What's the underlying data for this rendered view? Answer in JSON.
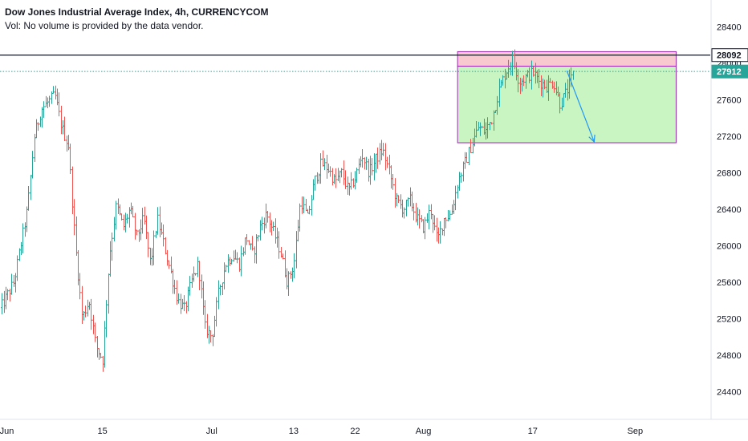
{
  "header": {
    "title": "Dow Jones Industrial Average Index, 4h, CURRENCYCOM",
    "volume_note": "Vol: No volume is provided by the data vendor."
  },
  "colors": {
    "up": "#26a69a",
    "down": "#ef5350",
    "resistance_fill": "#f8c9cf",
    "target_fill": "#c9f5c3",
    "zone_border": "#9c27b0",
    "black_line": "#131722",
    "dotted_line": "#26a69a",
    "arrow": "#2196f3"
  },
  "chart_data": {
    "type": "candlestick",
    "title": "Dow Jones Industrial Average Index, 4h, CURRENCYCOM",
    "y_axis": {
      "ticks": [
        24400,
        24800,
        25200,
        25600,
        26000,
        26400,
        26800,
        27200,
        27600,
        28000,
        28400
      ],
      "range": [
        24200,
        28600
      ],
      "position": "right"
    },
    "x_axis": {
      "labels": [
        "Jun",
        "15",
        "Jul",
        "13",
        "22",
        "Aug",
        "17",
        "Sep"
      ],
      "range": [
        "2020-05-31",
        "2020-09-12"
      ]
    },
    "price_lines": [
      {
        "label": "28092",
        "value": 28092,
        "style": "solid",
        "color": "#131722"
      },
      {
        "label": "27912",
        "value": 27912,
        "style": "dotted",
        "color": "#26a69a"
      }
    ],
    "annotations": [
      {
        "type": "rectangle",
        "name": "resistance-zone",
        "x_from": "2020-08-06",
        "x_to": "2020-09-07",
        "y_from": 27970,
        "y_to": 28130,
        "fill": "pink"
      },
      {
        "type": "rectangle",
        "name": "target-zone",
        "x_from": "2020-08-06",
        "x_to": "2020-09-07",
        "y_from": 27130,
        "y_to": 27970,
        "fill": "light-green"
      },
      {
        "type": "arrow",
        "x_from": "2020-08-22",
        "y_from": 27920,
        "x_to": "2020-08-26",
        "y_to": 27140
      }
    ],
    "close_path": [
      [
        "2020-05-31",
        25300
      ],
      [
        "2020-06-02",
        25600
      ],
      [
        "2020-06-04",
        26400
      ],
      [
        "2020-06-05",
        27200
      ],
      [
        "2020-06-06",
        27500
      ],
      [
        "2020-06-08",
        27650
      ],
      [
        "2020-06-09",
        27300
      ],
      [
        "2020-06-10",
        27100
      ],
      [
        "2020-06-11",
        26000
      ],
      [
        "2020-06-12",
        25200
      ],
      [
        "2020-06-13",
        25400
      ],
      [
        "2020-06-14",
        24900
      ],
      [
        "2020-06-15",
        24750
      ],
      [
        "2020-06-16",
        25900
      ],
      [
        "2020-06-17",
        26450
      ],
      [
        "2020-06-18",
        26200
      ],
      [
        "2020-06-19",
        26400
      ],
      [
        "2020-06-20",
        26100
      ],
      [
        "2020-06-21",
        26300
      ],
      [
        "2020-06-22",
        25800
      ],
      [
        "2020-06-23",
        26300
      ],
      [
        "2020-06-24",
        26000
      ],
      [
        "2020-06-25",
        25700
      ],
      [
        "2020-06-26",
        25400
      ],
      [
        "2020-06-27",
        25300
      ],
      [
        "2020-06-28",
        25600
      ],
      [
        "2020-06-29",
        25800
      ],
      [
        "2020-06-30",
        25100
      ],
      [
        "2020-07-01",
        25000
      ],
      [
        "2020-07-02",
        25500
      ],
      [
        "2020-07-03",
        25800
      ],
      [
        "2020-07-04",
        25900
      ],
      [
        "2020-07-05",
        25800
      ],
      [
        "2020-07-06",
        26100
      ],
      [
        "2020-07-07",
        25900
      ],
      [
        "2020-07-08",
        26200
      ],
      [
        "2020-07-09",
        26350
      ],
      [
        "2020-07-10",
        26150
      ],
      [
        "2020-07-11",
        25950
      ],
      [
        "2020-07-12",
        25600
      ],
      [
        "2020-07-13",
        25800
      ],
      [
        "2020-07-14",
        26500
      ],
      [
        "2020-07-15",
        26300
      ],
      [
        "2020-07-16",
        26700
      ],
      [
        "2020-07-17",
        26900
      ],
      [
        "2020-07-18",
        26850
      ],
      [
        "2020-07-19",
        26700
      ],
      [
        "2020-07-20",
        26800
      ],
      [
        "2020-07-21",
        26600
      ],
      [
        "2020-07-22",
        26750
      ],
      [
        "2020-07-23",
        27000
      ],
      [
        "2020-07-24",
        26800
      ],
      [
        "2020-07-25",
        26950
      ],
      [
        "2020-07-26",
        27050
      ],
      [
        "2020-07-27",
        26800
      ],
      [
        "2020-07-28",
        26500
      ],
      [
        "2020-07-29",
        26400
      ],
      [
        "2020-07-30",
        26500
      ],
      [
        "2020-07-31",
        26300
      ],
      [
        "2020-08-01",
        26200
      ],
      [
        "2020-08-02",
        26400
      ],
      [
        "2020-08-03",
        26050
      ],
      [
        "2020-08-04",
        26300
      ],
      [
        "2020-08-05",
        26350
      ],
      [
        "2020-08-06",
        26700
      ],
      [
        "2020-08-07",
        26900
      ],
      [
        "2020-08-08",
        27100
      ],
      [
        "2020-08-09",
        27300
      ],
      [
        "2020-08-10",
        27250
      ],
      [
        "2020-08-11",
        27400
      ],
      [
        "2020-08-12",
        27700
      ],
      [
        "2020-08-13",
        27900
      ],
      [
        "2020-08-14",
        28050
      ],
      [
        "2020-08-15",
        27800
      ],
      [
        "2020-08-16",
        27850
      ],
      [
        "2020-08-17",
        27900
      ],
      [
        "2020-08-18",
        27800
      ],
      [
        "2020-08-19",
        27750
      ],
      [
        "2020-08-20",
        27800
      ],
      [
        "2020-08-21",
        27550
      ],
      [
        "2020-08-22",
        27700
      ],
      [
        "2020-08-23",
        27900
      ]
    ]
  }
}
